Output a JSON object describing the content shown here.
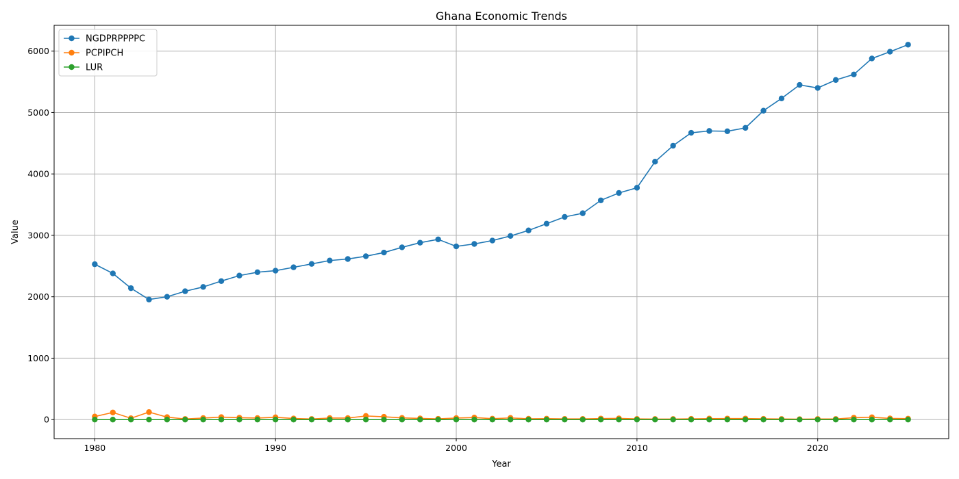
{
  "chart_data": {
    "type": "line",
    "title": "Ghana Economic Trends",
    "xlabel": "Year",
    "ylabel": "Value",
    "xlim": [
      1977.75,
      2027.25
    ],
    "ylim": [
      -310,
      6420
    ],
    "xticks": [
      1980,
      1990,
      2000,
      2010,
      2020
    ],
    "yticks": [
      0,
      1000,
      2000,
      3000,
      4000,
      5000,
      6000
    ],
    "grid": true,
    "legend_position": "top-left",
    "x": [
      1980,
      1981,
      1982,
      1983,
      1984,
      1985,
      1986,
      1987,
      1988,
      1989,
      1990,
      1991,
      1992,
      1993,
      1994,
      1995,
      1996,
      1997,
      1998,
      1999,
      2000,
      2001,
      2002,
      2003,
      2004,
      2005,
      2006,
      2007,
      2008,
      2009,
      2010,
      2011,
      2012,
      2013,
      2014,
      2015,
      2016,
      2017,
      2018,
      2019,
      2020,
      2021,
      2022,
      2023,
      2024,
      2025
    ],
    "series": [
      {
        "name": "NGDPRPPPPC",
        "color": "#1f77b4",
        "values": [
          2530,
          2380,
          2140,
          1955,
          2000,
          2090,
          2160,
          2255,
          2345,
          2400,
          2425,
          2480,
          2535,
          2590,
          2615,
          2660,
          2720,
          2805,
          2880,
          2935,
          2820,
          2860,
          2915,
          2990,
          3080,
          3190,
          3300,
          3360,
          3570,
          3690,
          3775,
          4200,
          4460,
          4670,
          4700,
          4695,
          4750,
          5030,
          5230,
          5450,
          5400,
          5530,
          5620,
          5880,
          5990,
          6105
        ]
      },
      {
        "name": "PCPIPCH",
        "color": "#ff7f0e",
        "values": [
          50,
          116,
          22,
          122,
          40,
          10,
          25,
          40,
          31,
          25,
          37,
          18,
          10,
          25,
          25,
          59,
          46,
          28,
          19,
          12,
          25,
          33,
          15,
          27,
          13,
          15,
          11,
          11,
          17,
          19,
          11,
          9,
          9,
          12,
          16,
          17,
          17,
          12,
          10,
          7,
          10,
          10,
          31,
          38,
          19,
          15
        ]
      },
      {
        "name": "LUR",
        "color": "#2ca02c",
        "values": [
          0,
          0,
          0,
          0,
          0,
          0,
          0,
          0,
          0,
          0,
          0,
          0,
          0,
          0,
          0,
          0,
          0,
          0,
          0,
          0,
          0,
          0,
          0,
          0,
          0,
          0,
          0,
          0,
          0,
          0,
          0,
          0,
          0,
          0,
          0,
          0,
          0,
          0,
          0,
          0,
          0,
          0,
          0,
          0,
          0,
          0
        ]
      }
    ]
  }
}
